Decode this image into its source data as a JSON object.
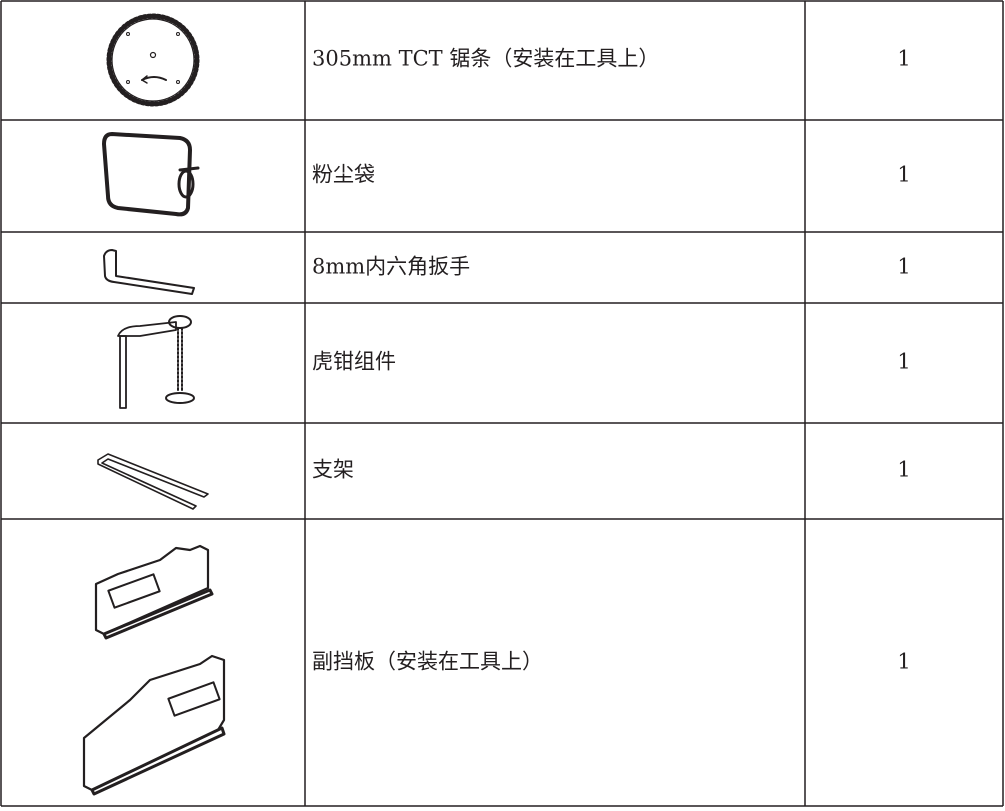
{
  "table": {
    "rows": [
      [
        "305mm TCT 锯条（安装在工具上）",
        "1"
      ],
      [
        "粉尘袋",
        "1"
      ],
      [
        "8mm内六角扳手",
        "1"
      ],
      [
        "虎钳组件",
        "1"
      ],
      [
        "支架",
        "1"
      ],
      [
        "副挡板（安装在工具上）",
        "1"
      ]
    ]
  }
}
